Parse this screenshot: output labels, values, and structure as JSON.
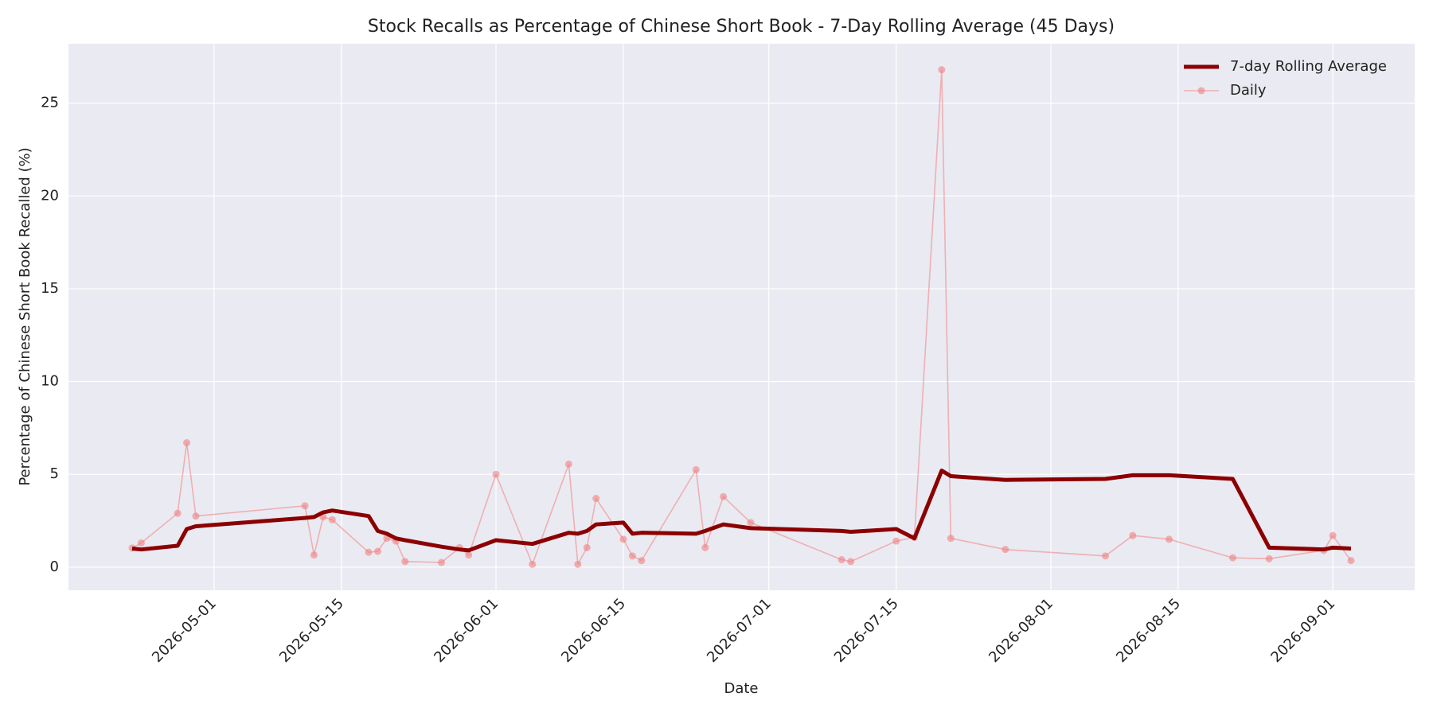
{
  "chart_data": {
    "type": "line",
    "title": "Stock Recalls as Percentage of Chinese Short Book - 7-Day Rolling Average (45 Days)",
    "xlabel": "Date",
    "ylabel": "Percentage of Chinese Short Book Recalled (%)",
    "x": [
      "2026-04-22",
      "2026-04-23",
      "2026-04-27",
      "2026-04-28",
      "2026-04-29",
      "2026-05-11",
      "2026-05-12",
      "2026-05-13",
      "2026-05-14",
      "2026-05-18",
      "2026-05-19",
      "2026-05-20",
      "2026-05-21",
      "2026-05-22",
      "2026-05-26",
      "2026-05-28",
      "2026-05-29",
      "2026-06-01",
      "2026-06-05",
      "2026-06-09",
      "2026-06-10",
      "2026-06-11",
      "2026-06-12",
      "2026-06-15",
      "2026-06-16",
      "2026-06-17",
      "2026-06-23",
      "2026-06-24",
      "2026-06-26",
      "2026-06-29",
      "2026-07-09",
      "2026-07-10",
      "2026-07-15",
      "2026-07-17",
      "2026-07-20",
      "2026-07-21",
      "2026-07-27",
      "2026-08-07",
      "2026-08-10",
      "2026-08-14",
      "2026-08-21",
      "2026-08-25",
      "2026-08-31",
      "2026-09-01",
      "2026-09-03"
    ],
    "series": [
      {
        "name": "7-day Rolling Average",
        "color": "#8b0000",
        "marker": false,
        "values": [
          1.0,
          0.95,
          1.15,
          2.05,
          2.2,
          2.65,
          2.7,
          2.95,
          3.05,
          2.75,
          1.95,
          1.8,
          1.55,
          1.45,
          1.1,
          0.95,
          0.9,
          1.45,
          1.25,
          1.85,
          1.8,
          1.95,
          2.3,
          2.4,
          1.8,
          1.85,
          1.8,
          1.95,
          2.3,
          2.1,
          1.95,
          1.9,
          2.05,
          1.55,
          5.2,
          4.9,
          4.7,
          4.75,
          4.95,
          4.95,
          4.75,
          1.05,
          0.95,
          1.05,
          1.0
        ]
      },
      {
        "name": "Daily",
        "color": "#f08080",
        "marker": true,
        "values": [
          1.03,
          1.3,
          2.9,
          6.7,
          2.75,
          3.3,
          0.65,
          2.7,
          2.55,
          0.8,
          0.85,
          1.55,
          1.4,
          0.3,
          0.25,
          1.05,
          0.65,
          5.0,
          0.15,
          5.55,
          0.15,
          1.05,
          3.7,
          1.5,
          0.6,
          0.35,
          5.25,
          1.05,
          3.8,
          2.4,
          0.4,
          0.3,
          1.4,
          1.6,
          26.8,
          1.55,
          0.95,
          0.6,
          1.7,
          1.5,
          0.5,
          0.45,
          0.9,
          1.7,
          0.35
        ]
      }
    ],
    "xlim": [
      "2026-04-15",
      "2026-09-10"
    ],
    "xticks": [
      "2026-05-01",
      "2026-05-15",
      "2026-06-01",
      "2026-06-15",
      "2026-07-01",
      "2026-07-15",
      "2026-08-01",
      "2026-08-15",
      "2026-09-01"
    ],
    "ylim": [
      -1.25,
      28.2
    ],
    "yticks": [
      0,
      5,
      10,
      15,
      20,
      25
    ],
    "grid": true,
    "legend": "upper right"
  }
}
